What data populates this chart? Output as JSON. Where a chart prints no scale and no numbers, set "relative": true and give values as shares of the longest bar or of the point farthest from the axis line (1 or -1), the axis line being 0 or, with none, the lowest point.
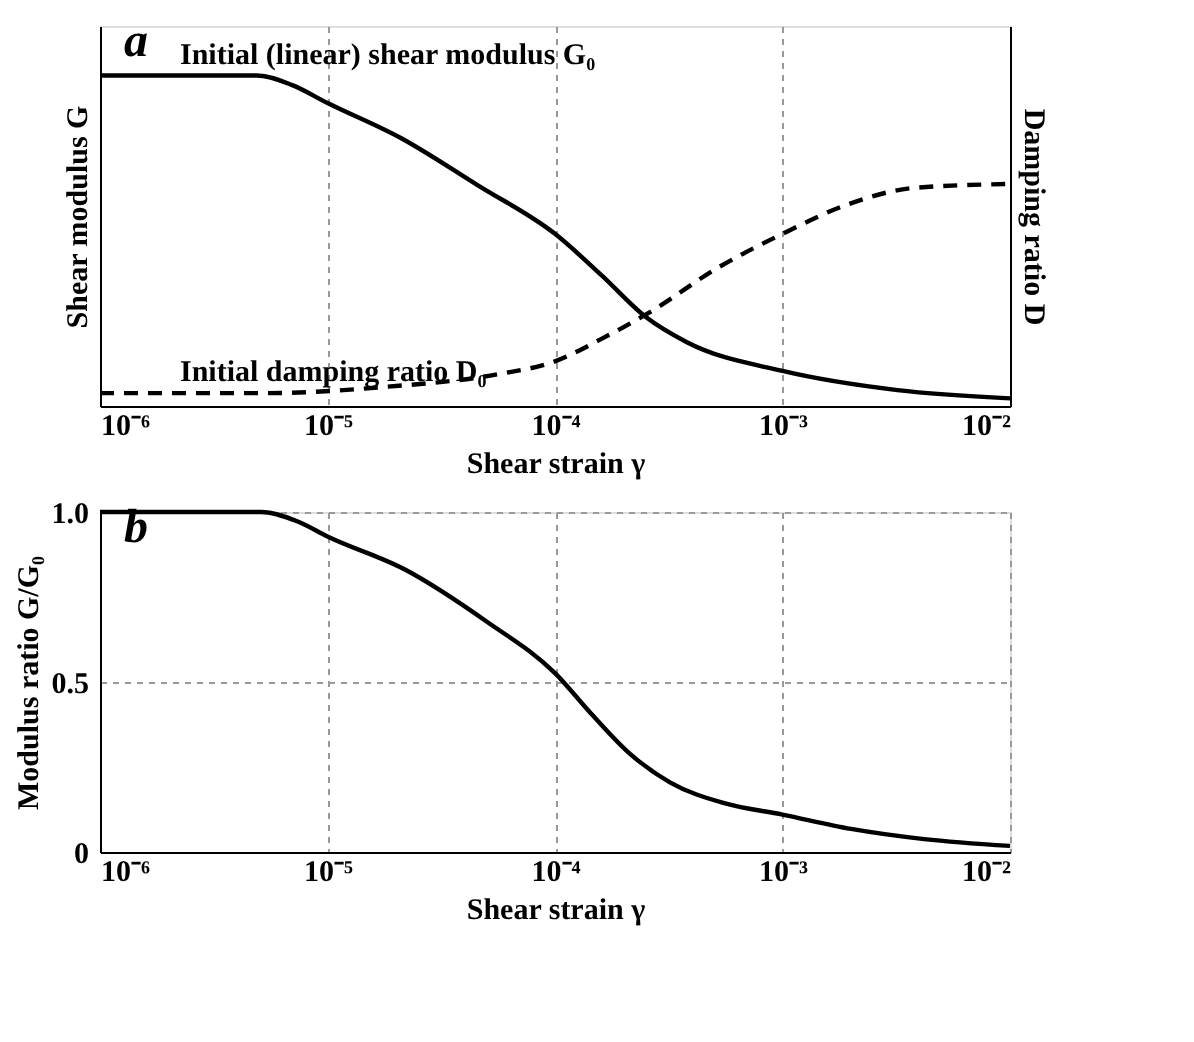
{
  "chart_data": [
    {
      "type": "line",
      "relative": true,
      "log": "x",
      "grid": "x",
      "xlabel": "Shear strain  γ",
      "ylabel": "Shear modulus  G",
      "y2label": "Damping ratio  D",
      "xlim": [
        1e-06,
        0.01
      ],
      "xticks": [
        {
          "value": 1e-06,
          "label": "10⁻⁶"
        },
        {
          "value": 1e-05,
          "label": "10⁻⁵"
        },
        {
          "value": 0.0001,
          "label": "10⁻⁴"
        },
        {
          "value": 0.001,
          "label": "10⁻³"
        },
        {
          "value": 0.01,
          "label": "10⁻²"
        }
      ],
      "annotations": [
        "a",
        {
          "text": "Initial (linear) shear modulus G₀",
          "x": 1e-06,
          "y": 1
        },
        {
          "text": "Initial damping ratio D₀",
          "x": 1e-06,
          "y": 0.039
        }
      ],
      "series": [
        {
          "color": "#000000",
          "line_style": "solid",
          "x": [
            1e-06,
            4.9e-06,
            7e-06,
            1e-05,
            2.1e-05,
            4.6e-05,
            0.0001,
            0.00016,
            0.00025,
            0.00038,
            0.001,
            0.0032,
            0.01
          ],
          "values": [
            1,
            1,
            0.971,
            0.917,
            0.811,
            0.667,
            0.521,
            0.396,
            0.27,
            0.193,
            0.106,
            0.048,
            0.023
          ]
        },
        {
          "color": "#000000",
          "line_style": "dashed",
          "axis": "y2",
          "x": [
            1e-06,
            5.3e-06,
            1.8e-05,
            5.7e-05,
            0.0001,
            0.00016,
            0.00027,
            0.00051,
            0.001,
            0.0019,
            0.0038,
            0.01
          ],
          "values": [
            0.039,
            0.039,
            0.058,
            0.097,
            0.135,
            0.203,
            0.29,
            0.415,
            0.521,
            0.608,
            0.66,
            0.672
          ]
        }
      ]
    },
    {
      "type": "line",
      "log": "x",
      "grid": true,
      "xlabel": "Shear strain  γ",
      "ylabel": "Modulus ratio  G/G₀",
      "xlim": [
        1e-06,
        0.01
      ],
      "xticks": [
        {
          "value": 1e-06,
          "label": "10⁻⁶"
        },
        {
          "value": 1e-05,
          "label": "10⁻⁵"
        },
        {
          "value": 0.0001,
          "label": "10⁻⁴"
        },
        {
          "value": 0.001,
          "label": "10⁻³"
        },
        {
          "value": 0.01,
          "label": "10⁻²"
        }
      ],
      "ylim": [
        0,
        1
      ],
      "yticks": [
        0,
        0.5,
        {
          "value": 1,
          "label": "1.0"
        }
      ],
      "annotations": [
        "b"
      ],
      "series": [
        {
          "color": "#000000",
          "line_style": "solid",
          "x": [
            1e-06,
            2.5e-06,
            5.1e-06,
            7.4e-06,
            1e-05,
            2.2e-05,
            5e-05,
            0.0001,
            0.000145,
            0.00021,
            0.00032,
            0.00056,
            0.001,
            0.002,
            0.0042,
            0.01
          ],
          "values": [
            1,
            1,
            1,
            0.972,
            0.928,
            0.83,
            0.678,
            0.526,
            0.405,
            0.293,
            0.205,
            0.143,
            0.11,
            0.068,
            0.038,
            0.018
          ]
        }
      ]
    }
  ]
}
